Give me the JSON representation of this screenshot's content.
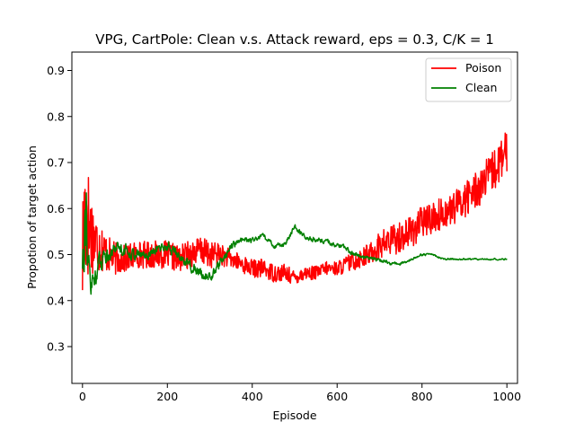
{
  "chart_data": {
    "type": "line",
    "title": "VPG, CartPole: Clean v.s. Attack reward, eps = 0.3, C/K = 1",
    "xlabel": "Episode",
    "ylabel": "Propotion of target action",
    "xlim": [
      -25,
      1025
    ],
    "ylim": [
      0.22,
      0.94
    ],
    "xticks": [
      0,
      200,
      400,
      600,
      800,
      1000
    ],
    "yticks": [
      0.3,
      0.4,
      0.5,
      0.6,
      0.7,
      0.8,
      0.9
    ],
    "xtick_labels": [
      "0",
      "200",
      "400",
      "600",
      "800",
      "1000"
    ],
    "ytick_labels": [
      "0.3",
      "0.4",
      "0.5",
      "0.6",
      "0.7",
      "0.8",
      "0.9"
    ],
    "legend_position": "upper right",
    "grid": false,
    "series": [
      {
        "name": "Poison",
        "color": "#ff0000",
        "x": [
          0,
          5,
          10,
          15,
          20,
          25,
          30,
          40,
          50,
          60,
          80,
          100,
          125,
          150,
          175,
          200,
          225,
          250,
          275,
          300,
          325,
          350,
          375,
          400,
          425,
          450,
          475,
          500,
          525,
          550,
          575,
          600,
          625,
          650,
          675,
          700,
          725,
          750,
          775,
          800,
          825,
          850,
          875,
          900,
          925,
          950,
          975,
          1000
        ],
        "values": [
          0.5,
          0.58,
          0.6,
          0.56,
          0.55,
          0.54,
          0.53,
          0.52,
          0.51,
          0.5,
          0.49,
          0.49,
          0.5,
          0.5,
          0.5,
          0.5,
          0.49,
          0.5,
          0.51,
          0.5,
          0.5,
          0.49,
          0.48,
          0.47,
          0.47,
          0.46,
          0.46,
          0.45,
          0.46,
          0.46,
          0.47,
          0.47,
          0.48,
          0.49,
          0.5,
          0.52,
          0.53,
          0.54,
          0.55,
          0.57,
          0.58,
          0.59,
          0.6,
          0.62,
          0.64,
          0.66,
          0.69,
          0.72
        ],
        "noise": [
          0.15,
          0.17,
          0.16,
          0.12,
          0.1,
          0.08,
          0.07,
          0.06,
          0.05,
          0.04,
          0.035,
          0.03,
          0.03,
          0.03,
          0.03,
          0.03,
          0.03,
          0.03,
          0.03,
          0.03,
          0.025,
          0.02,
          0.02,
          0.02,
          0.02,
          0.02,
          0.02,
          0.015,
          0.015,
          0.015,
          0.015,
          0.015,
          0.02,
          0.02,
          0.025,
          0.03,
          0.035,
          0.035,
          0.035,
          0.035,
          0.035,
          0.035,
          0.035,
          0.04,
          0.04,
          0.045,
          0.045,
          0.05
        ]
      },
      {
        "name": "Clean",
        "color": "#008000",
        "x": [
          0,
          5,
          10,
          15,
          20,
          25,
          30,
          40,
          50,
          60,
          80,
          100,
          125,
          150,
          175,
          200,
          225,
          250,
          275,
          300,
          325,
          350,
          375,
          400,
          425,
          450,
          475,
          500,
          525,
          550,
          575,
          600,
          625,
          650,
          675,
          700,
          725,
          750,
          775,
          800,
          825,
          850,
          875,
          900,
          925,
          950,
          975,
          1000
        ],
        "values": [
          0.5,
          0.62,
          0.58,
          0.45,
          0.42,
          0.44,
          0.46,
          0.48,
          0.5,
          0.5,
          0.52,
          0.51,
          0.5,
          0.5,
          0.51,
          0.52,
          0.5,
          0.48,
          0.46,
          0.45,
          0.48,
          0.52,
          0.53,
          0.53,
          0.54,
          0.52,
          0.52,
          0.56,
          0.54,
          0.53,
          0.53,
          0.52,
          0.51,
          0.5,
          0.49,
          0.49,
          0.48,
          0.48,
          0.49,
          0.5,
          0.5,
          0.49,
          0.49,
          0.49,
          0.49,
          0.49,
          0.49,
          0.49
        ],
        "noise": [
          0.15,
          0.18,
          0.16,
          0.1,
          0.08,
          0.06,
          0.05,
          0.04,
          0.035,
          0.03,
          0.025,
          0.025,
          0.02,
          0.02,
          0.02,
          0.02,
          0.02,
          0.02,
          0.02,
          0.02,
          0.015,
          0.015,
          0.015,
          0.01,
          0.01,
          0.01,
          0.01,
          0.01,
          0.01,
          0.01,
          0.01,
          0.01,
          0.01,
          0.01,
          0.008,
          0.008,
          0.006,
          0.005,
          0.005,
          0.004,
          0.004,
          0.004,
          0.003,
          0.003,
          0.003,
          0.003,
          0.003,
          0.003
        ]
      }
    ]
  }
}
